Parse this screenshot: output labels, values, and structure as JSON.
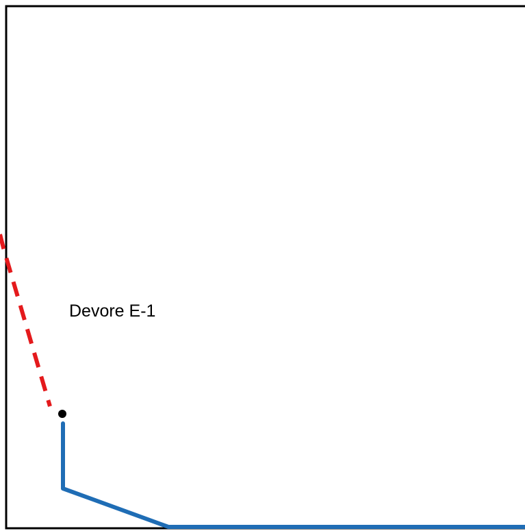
{
  "label": "Devore E-1",
  "colors": {
    "frame": "#000000",
    "dashed_path": "#e41a1c",
    "solid_path": "#1f6db5",
    "marker": "#000000"
  }
}
